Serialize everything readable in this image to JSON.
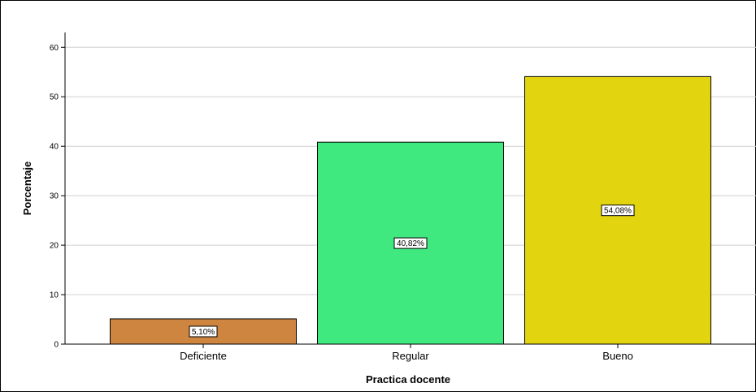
{
  "chart_data": {
    "type": "bar",
    "title": "",
    "xlabel": "Practica docente",
    "ylabel": "Porcentaje",
    "categories": [
      "Deficiente",
      "Regular",
      "Bueno"
    ],
    "values": [
      5.1,
      40.82,
      54.08
    ],
    "data_labels": [
      "5,10%",
      "40,82%",
      "54,08%"
    ],
    "colors": [
      "#cd853f",
      "#40e980",
      "#e2d40f"
    ],
    "ylim": [
      0,
      63
    ],
    "yticks": [
      0,
      10,
      20,
      30,
      40,
      50,
      60
    ],
    "grid": true,
    "legend": "none"
  }
}
